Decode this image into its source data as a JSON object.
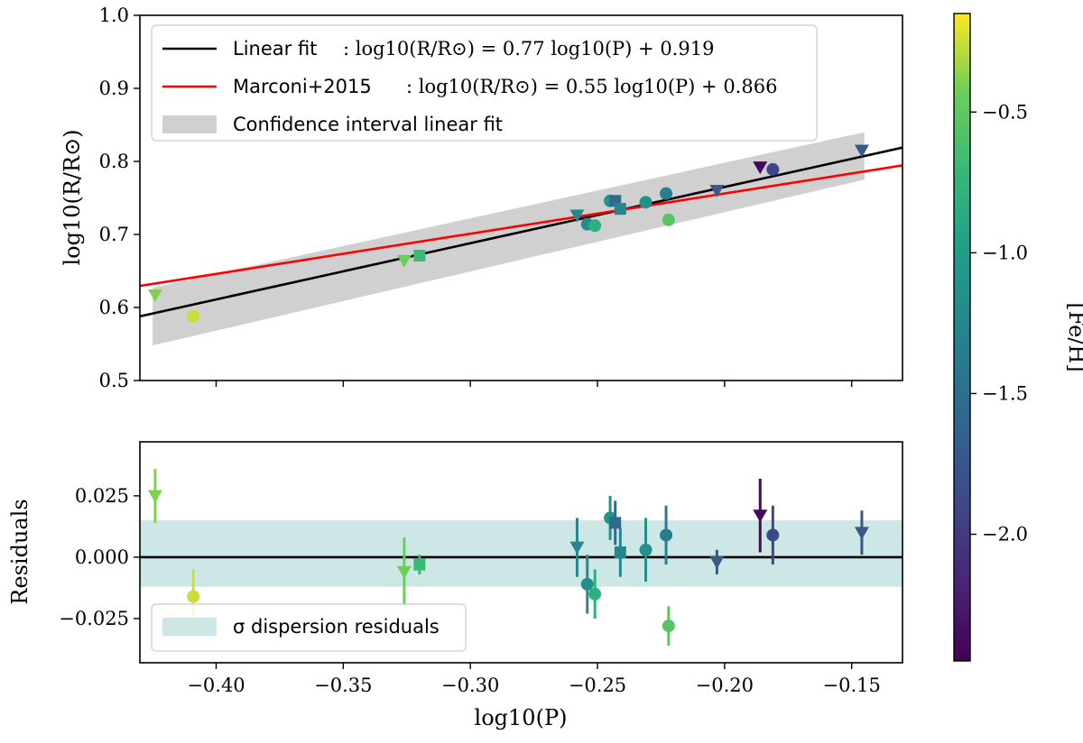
{
  "chart_data": {
    "type": "scatter",
    "top_panel": {
      "ylabel": "log10(R/R⊙)",
      "ylim": [
        0.5,
        1.0
      ],
      "yticks": [
        "0.5",
        "0.6",
        "0.7",
        "0.8",
        "0.9",
        "1.0"
      ],
      "grid": false,
      "legend_position": "upper-left",
      "legend": [
        {
          "name": "Linear fit",
          "formula": ": log10(R/R⊙) = 0.77 log10(P) + 0.919",
          "color": "#000000"
        },
        {
          "name": "Marconi+2015",
          "formula": ": log10(R/R⊙) = 0.55 log10(P) + 0.866",
          "color": "#ff0000"
        },
        {
          "name": "Confidence interval linear fit",
          "formula": "",
          "color": "#d0d0d0"
        }
      ],
      "lines": [
        {
          "name": "Linear fit",
          "slope": 0.77,
          "intercept": 0.919,
          "color": "#000000"
        },
        {
          "name": "Marconi+2015",
          "slope": 0.55,
          "intercept": 0.866,
          "color": "#ff0000"
        }
      ],
      "confidence_band": {
        "x": [
          -0.425,
          -0.145
        ],
        "lower": [
          0.548,
          0.775
        ],
        "upper": [
          0.627,
          0.84
        ]
      },
      "points": [
        {
          "x": -0.424,
          "y": 0.617,
          "marker": "v",
          "feh": -0.4
        },
        {
          "x": -0.409,
          "y": 0.588,
          "marker": "o",
          "feh": -0.25
        },
        {
          "x": -0.326,
          "y": 0.664,
          "marker": "v",
          "feh": -0.45
        },
        {
          "x": -0.32,
          "y": 0.671,
          "marker": "s",
          "feh": -0.7
        },
        {
          "x": -0.258,
          "y": 0.726,
          "marker": "v",
          "feh": -1.25
        },
        {
          "x": -0.254,
          "y": 0.714,
          "marker": "o",
          "feh": -1.2
        },
        {
          "x": -0.251,
          "y": 0.712,
          "marker": "o",
          "feh": -0.8
        },
        {
          "x": -0.245,
          "y": 0.746,
          "marker": "o",
          "feh": -1.1
        },
        {
          "x": -0.243,
          "y": 0.746,
          "marker": "s",
          "feh": -1.55
        },
        {
          "x": -0.241,
          "y": 0.735,
          "marker": "s",
          "feh": -1.25
        },
        {
          "x": -0.231,
          "y": 0.744,
          "marker": "o",
          "feh": -1.15
        },
        {
          "x": -0.223,
          "y": 0.756,
          "marker": "o",
          "feh": -1.35
        },
        {
          "x": -0.222,
          "y": 0.72,
          "marker": "o",
          "feh": -0.55
        },
        {
          "x": -0.203,
          "y": 0.76,
          "marker": "v",
          "feh": -1.7
        },
        {
          "x": -0.186,
          "y": 0.792,
          "marker": "v",
          "feh": -2.4
        },
        {
          "x": -0.181,
          "y": 0.789,
          "marker": "o",
          "feh": -1.9
        },
        {
          "x": -0.146,
          "y": 0.815,
          "marker": "v",
          "feh": -1.75
        }
      ]
    },
    "bottom_panel": {
      "ylabel": "Residuals",
      "ylim": [
        -0.043,
        0.047
      ],
      "yticks": [
        "−0.025",
        "0.000",
        "0.025"
      ],
      "zero_line": 0.0,
      "dispersion_band": [
        -0.012,
        0.015
      ],
      "legend_position": "lower-left",
      "legend": [
        {
          "name": "σ dispersion residuals",
          "color": "#cde6e6"
        }
      ],
      "points": [
        {
          "x": -0.424,
          "y": 0.025,
          "err": 0.011,
          "marker": "v",
          "feh": -0.4
        },
        {
          "x": -0.409,
          "y": -0.016,
          "err": 0.011,
          "marker": "o",
          "feh": -0.25
        },
        {
          "x": -0.326,
          "y": -0.006,
          "err": 0.014,
          "marker": "v",
          "feh": -0.45
        },
        {
          "x": -0.32,
          "y": -0.003,
          "err": 0.004,
          "marker": "s",
          "feh": -0.7
        },
        {
          "x": -0.258,
          "y": 0.004,
          "err": 0.012,
          "marker": "v",
          "feh": -1.25
        },
        {
          "x": -0.254,
          "y": -0.011,
          "err": 0.012,
          "marker": "o",
          "feh": -1.2
        },
        {
          "x": -0.251,
          "y": -0.015,
          "err": 0.01,
          "marker": "o",
          "feh": -0.8
        },
        {
          "x": -0.245,
          "y": 0.016,
          "err": 0.009,
          "marker": "o",
          "feh": -1.1
        },
        {
          "x": -0.243,
          "y": 0.014,
          "err": 0.009,
          "marker": "s",
          "feh": -1.55
        },
        {
          "x": -0.241,
          "y": 0.002,
          "err": 0.01,
          "marker": "s",
          "feh": -1.25
        },
        {
          "x": -0.231,
          "y": 0.003,
          "err": 0.013,
          "marker": "o",
          "feh": -1.15
        },
        {
          "x": -0.223,
          "y": 0.009,
          "err": 0.012,
          "marker": "o",
          "feh": -1.35
        },
        {
          "x": -0.222,
          "y": -0.028,
          "err": 0.008,
          "marker": "o",
          "feh": -0.55
        },
        {
          "x": -0.203,
          "y": -0.002,
          "err": 0.005,
          "marker": "v",
          "feh": -1.7
        },
        {
          "x": -0.186,
          "y": 0.017,
          "err": 0.015,
          "marker": "v",
          "feh": -2.4
        },
        {
          "x": -0.181,
          "y": 0.009,
          "err": 0.012,
          "marker": "o",
          "feh": -1.9
        },
        {
          "x": -0.146,
          "y": 0.01,
          "err": 0.009,
          "marker": "v",
          "feh": -1.75
        }
      ]
    },
    "xlabel": "log10(P)",
    "xlim": [
      -0.43,
      -0.13
    ],
    "xticks": [
      {
        "value": -0.4,
        "label": "−0.40"
      },
      {
        "value": -0.35,
        "label": "−0.35"
      },
      {
        "value": -0.3,
        "label": "−0.30"
      },
      {
        "value": -0.25,
        "label": "−0.25"
      },
      {
        "value": -0.2,
        "label": "−0.20"
      },
      {
        "value": -0.15,
        "label": "−0.15"
      }
    ],
    "colorbar": {
      "label": "[Fe/H]",
      "range": [
        -2.45,
        -0.15
      ],
      "ticks": [
        {
          "value": -0.5,
          "label": "−0.5"
        },
        {
          "value": -1.0,
          "label": "−1.0"
        },
        {
          "value": -1.5,
          "label": "−1.5"
        },
        {
          "value": -2.0,
          "label": "−2.0"
        }
      ],
      "colormap": "viridis"
    }
  }
}
